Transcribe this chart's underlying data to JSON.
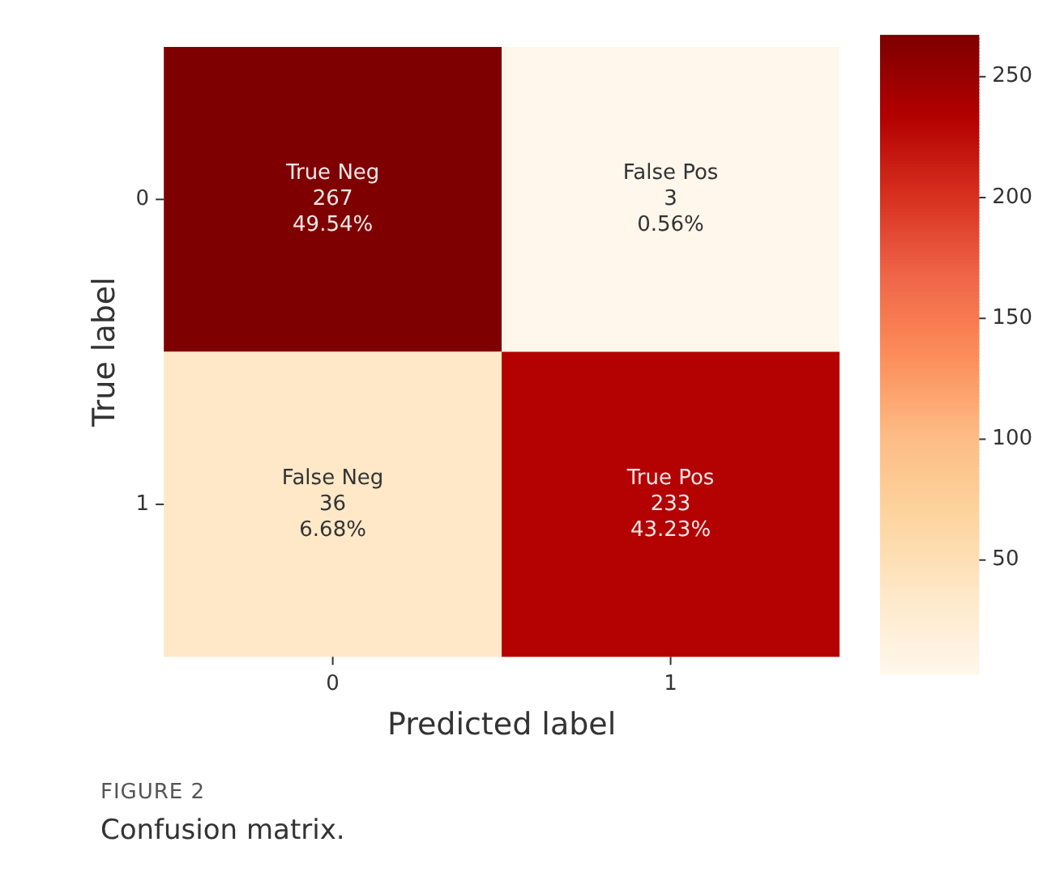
{
  "chart_data": {
    "type": "heatmap",
    "xlabel": "Predicted label",
    "ylabel": "True label",
    "categories": [
      "0",
      "1"
    ],
    "y_categories": [
      "0",
      "1"
    ],
    "cells": [
      [
        267,
        3
      ],
      [
        36,
        233
      ]
    ],
    "cell_labels": [
      [
        "True Neg\n267\n49.54%",
        "False Pos\n3\n0.56%"
      ],
      [
        "False Neg\n36\n6.68%",
        "True Pos\n233\n43.23%"
      ]
    ],
    "clim": [
      3,
      267
    ],
    "cticks": [
      50,
      100,
      150,
      200,
      250
    ],
    "annotations": [
      "FIGURE 2",
      "Confusion matrix."
    ]
  }
}
